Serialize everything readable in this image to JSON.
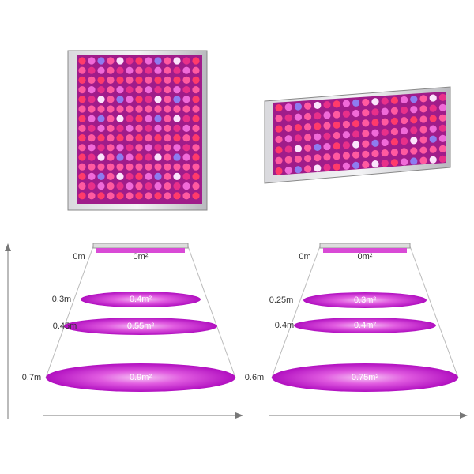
{
  "diagrams": [
    {
      "levels": [
        {
          "height": "0m",
          "area": "0m²"
        },
        {
          "height": "0.3m",
          "area": "0.4m²"
        },
        {
          "height": "0.45m",
          "area": "0.55m²"
        },
        {
          "height": "0.7m",
          "area": "0.9m²"
        }
      ]
    },
    {
      "levels": [
        {
          "height": "0m",
          "area": "0m²"
        },
        {
          "height": "0.25m",
          "area": "0.3m²"
        },
        {
          "height": "0.4m",
          "area": "0.4m²"
        },
        {
          "height": "0.6m",
          "area": "0.75m²"
        }
      ]
    }
  ]
}
